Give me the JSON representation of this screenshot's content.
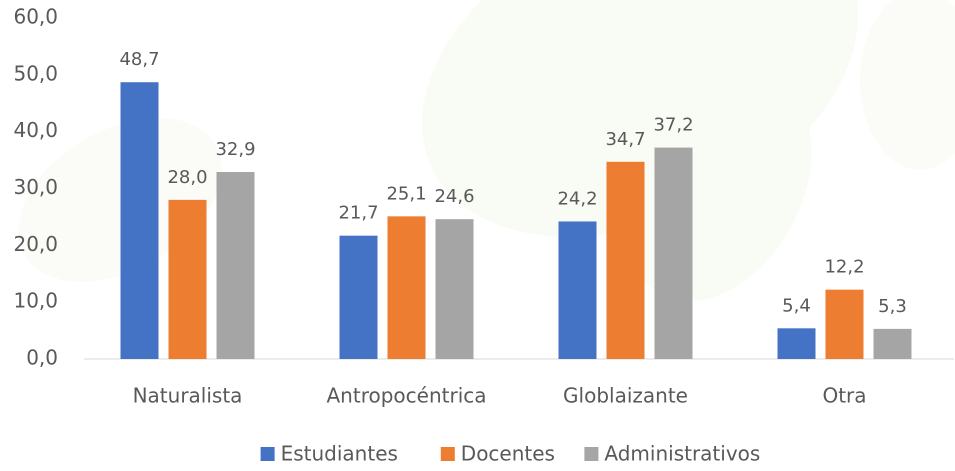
{
  "chart_data": {
    "type": "bar",
    "categories": [
      "Naturalista",
      "Antropocéntrica",
      "Globlaizante",
      "Otra"
    ],
    "series": [
      {
        "name": "Estudiantes",
        "color": "#4472c4",
        "values": [
          48.7,
          21.7,
          24.2,
          5.4
        ],
        "value_labels": [
          "48,7",
          "21,7",
          "24,2",
          "5,4"
        ]
      },
      {
        "name": "Docentes",
        "color": "#ed7d31",
        "values": [
          28.0,
          25.1,
          34.7,
          12.2
        ],
        "value_labels": [
          "28,0",
          "25,1",
          "34,7",
          "12,2"
        ]
      },
      {
        "name": "Administrativos",
        "color": "#a5a5a5",
        "values": [
          32.9,
          24.6,
          37.2,
          5.3
        ],
        "value_labels": [
          "32,9",
          "24,6",
          "37,2",
          "5,3"
        ]
      }
    ],
    "ylim": [
      0,
      60
    ],
    "yticks": [
      {
        "value": 0,
        "label": "0,0"
      },
      {
        "value": 10,
        "label": "10,0"
      },
      {
        "value": 20,
        "label": "20,0"
      },
      {
        "value": 30,
        "label": "30,0"
      },
      {
        "value": 40,
        "label": "40,0"
      },
      {
        "value": 50,
        "label": "50,0"
      },
      {
        "value": 60,
        "label": "60,0"
      }
    ],
    "grid": false,
    "legend": "bottom"
  }
}
